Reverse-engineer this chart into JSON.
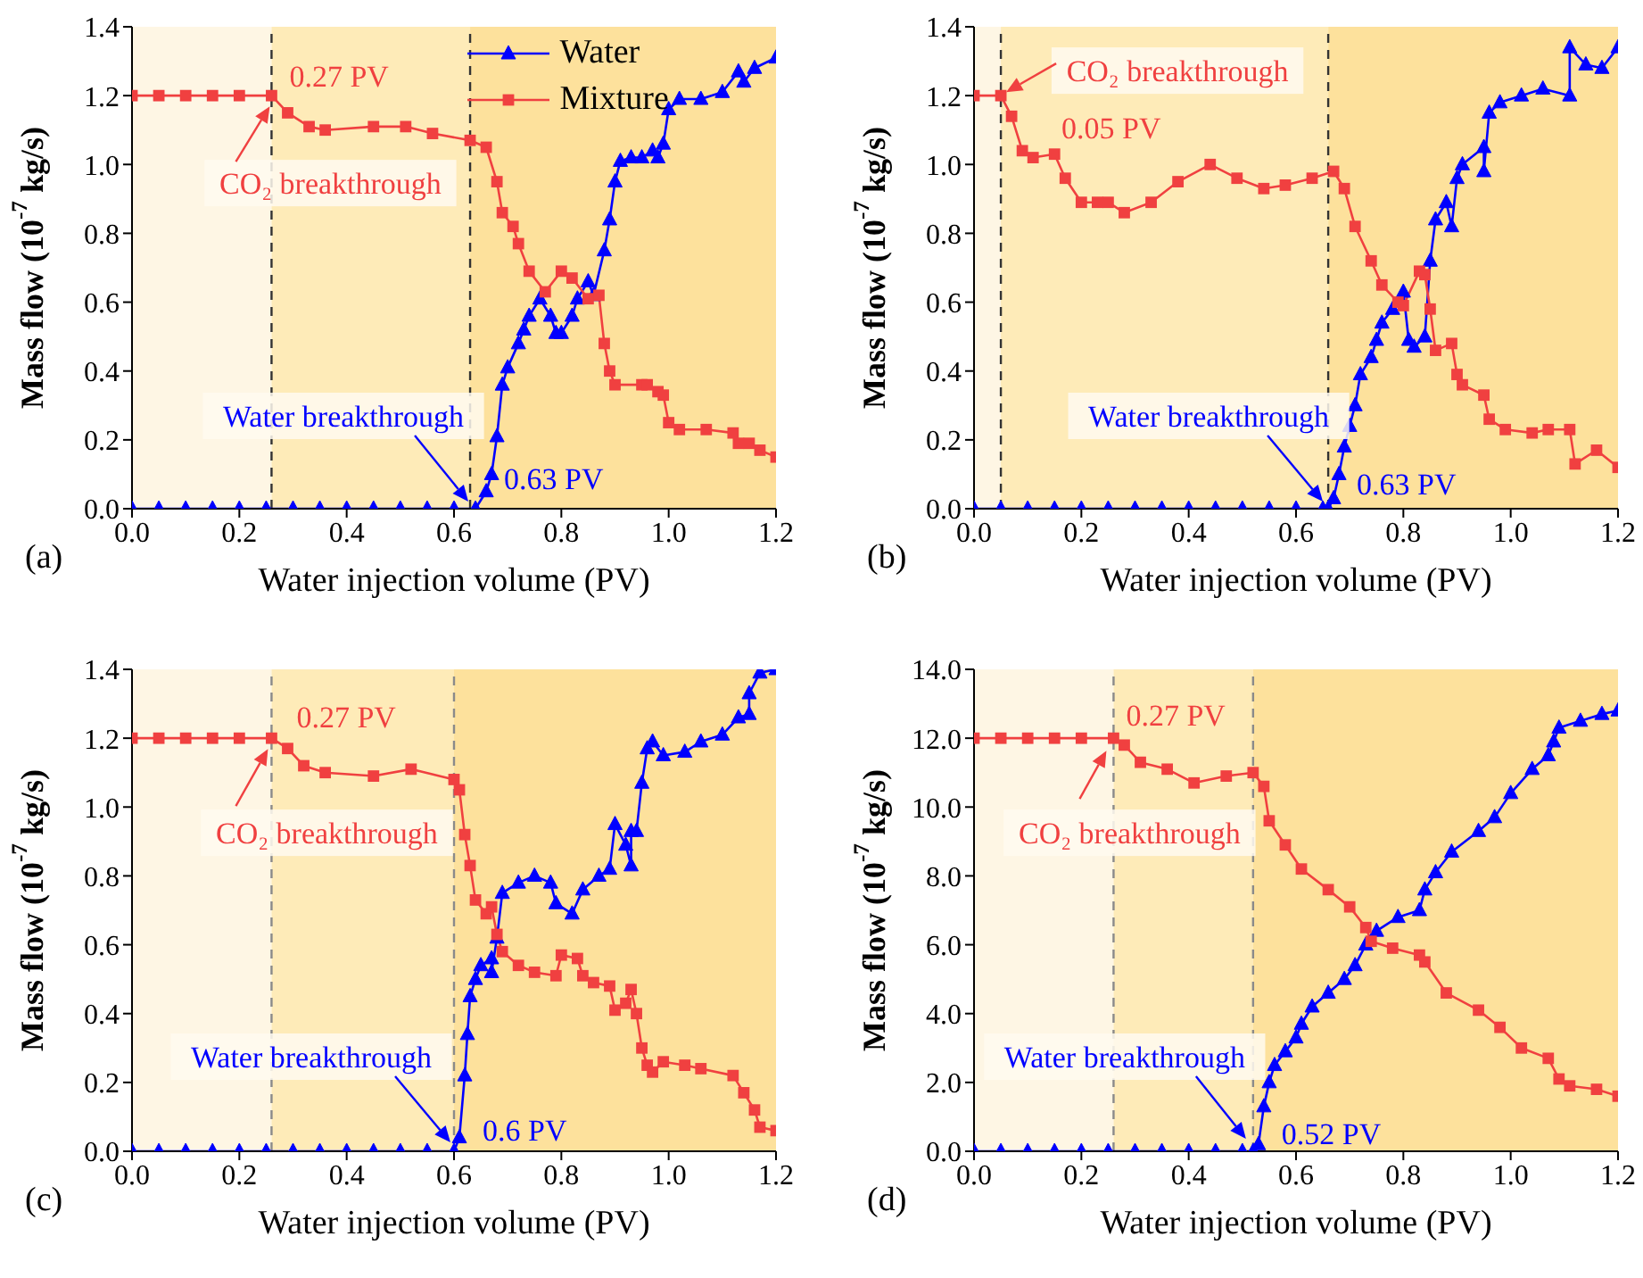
{
  "chart_data": [
    {
      "type": "line",
      "xlabel": "Water injection volume (PV)",
      "ylabel": "Mass flow (10$^{-7}$ kg/s)",
      "xlim": [
        0,
        1.2
      ],
      "ylim": [
        0,
        1.4
      ],
      "xticks": [
        {
          "value": 0,
          "label": "0.0"
        },
        {
          "value": 0.2,
          "label": "0.2"
        },
        {
          "value": 0.4,
          "label": "0.4"
        },
        {
          "value": 0.6,
          "label": "0.6"
        },
        {
          "value": 0.8,
          "label": "0.8"
        },
        {
          "value": 1,
          "label": "1.0"
        },
        {
          "value": 1.2,
          "label": "1.2"
        }
      ],
      "yticks": [
        {
          "value": 0,
          "label": "0.0"
        },
        {
          "value": 0.2,
          "label": "0.2"
        },
        {
          "value": 0.4,
          "label": "0.4"
        },
        {
          "value": 0.6,
          "label": "0.6"
        },
        {
          "value": 0.8,
          "label": "0.8"
        },
        {
          "value": 1,
          "label": "1.0"
        },
        {
          "value": 1.2,
          "label": "1.2"
        },
        {
          "value": 1.4,
          "label": "1.4"
        }
      ],
      "legend": "top right",
      "series": [
        {
          "name": "Water",
          "color": "#0000ff",
          "marker": "triangle",
          "x": [
            0,
            0.05,
            0.1,
            0.15,
            0.2,
            0.25,
            0.3,
            0.35,
            0.4,
            0.45,
            0.5,
            0.55,
            0.6,
            0.64,
            0.66,
            0.67,
            0.68,
            0.69,
            0.7,
            0.72,
            0.73,
            0.74,
            0.76,
            0.78,
            0.79,
            0.8,
            0.82,
            0.83,
            0.85,
            0.86,
            0.88,
            0.89,
            0.9,
            0.91,
            0.93,
            0.95,
            0.97,
            0.98,
            0.99,
            1.0,
            1.02,
            1.06,
            1.1,
            1.13,
            1.14,
            1.16,
            1.2
          ],
          "values": [
            0,
            0,
            0,
            0,
            0,
            0,
            0,
            0,
            0,
            0,
            0,
            0,
            0,
            0,
            0.05,
            0.1,
            0.21,
            0.36,
            0.41,
            0.48,
            0.52,
            0.56,
            0.61,
            0.56,
            0.51,
            0.51,
            0.56,
            0.61,
            0.66,
            0.62,
            0.75,
            0.84,
            0.95,
            1.01,
            1.02,
            1.02,
            1.04,
            1.02,
            1.06,
            1.16,
            1.19,
            1.19,
            1.21,
            1.27,
            1.24,
            1.28,
            1.31
          ]
        },
        {
          "name": "Mixture",
          "color": "#f04040",
          "marker": "square",
          "x": [
            0,
            0.05,
            0.1,
            0.15,
            0.2,
            0.26,
            0.29,
            0.33,
            0.36,
            0.45,
            0.51,
            0.56,
            0.63,
            0.66,
            0.68,
            0.69,
            0.71,
            0.72,
            0.74,
            0.77,
            0.8,
            0.82,
            0.85,
            0.87,
            0.88,
            0.89,
            0.9,
            0.95,
            0.96,
            0.98,
            0.99,
            1.0,
            1.02,
            1.07,
            1.12,
            1.13,
            1.15,
            1.17,
            1.2
          ],
          "values": [
            1.2,
            1.2,
            1.2,
            1.2,
            1.2,
            1.2,
            1.15,
            1.11,
            1.1,
            1.11,
            1.11,
            1.09,
            1.07,
            1.05,
            0.95,
            0.86,
            0.82,
            0.77,
            0.69,
            0.63,
            0.69,
            0.67,
            0.61,
            0.62,
            0.48,
            0.4,
            0.36,
            0.36,
            0.36,
            0.34,
            0.33,
            0.25,
            0.23,
            0.23,
            0.22,
            0.19,
            0.19,
            0.17,
            0.15
          ]
        }
      ],
      "bands": [
        {
          "axis": "x",
          "from": 0,
          "to": 0.26,
          "color": "#fef6e4"
        },
        {
          "axis": "x",
          "from": 0.26,
          "to": 0.63,
          "color": "#feebb8"
        },
        {
          "axis": "x",
          "from": 0.63,
          "to": 1.2,
          "color": "#fde19c"
        }
      ],
      "ref_lines": [
        {
          "axis": "x",
          "value": 0.26,
          "color": "#333333",
          "line_style": "dashed"
        },
        {
          "axis": "x",
          "value": 0.63,
          "color": "#333333",
          "line_style": "dashed"
        }
      ],
      "annotations": [
        "(a)",
        {
          "text": "0.27 PV",
          "x": 0.27,
          "y": 1.2
        },
        {
          "text": "CO₂ breakthrough",
          "x": 0.26,
          "y": 1.2
        },
        {
          "text": "Water breakthrough",
          "x": 0.63,
          "y": 0
        },
        {
          "text": "0.63 PV",
          "x": 0.63,
          "y": 0
        }
      ]
    },
    {
      "type": "line",
      "xlabel": "Water injection volume (PV)",
      "ylabel": "Mass flow (10$^{-7}$ kg/s)",
      "xlim": [
        0,
        1.2
      ],
      "ylim": [
        0,
        1.4
      ],
      "xticks": [
        {
          "value": 0,
          "label": "0.0"
        },
        {
          "value": 0.2,
          "label": "0.2"
        },
        {
          "value": 0.4,
          "label": "0.4"
        },
        {
          "value": 0.6,
          "label": "0.6"
        },
        {
          "value": 0.8,
          "label": "0.8"
        },
        {
          "value": 1,
          "label": "1.0"
        },
        {
          "value": 1.2,
          "label": "1.2"
        }
      ],
      "yticks": [
        {
          "value": 0,
          "label": "0.0"
        },
        {
          "value": 0.2,
          "label": "0.2"
        },
        {
          "value": 0.4,
          "label": "0.4"
        },
        {
          "value": 0.6,
          "label": "0.6"
        },
        {
          "value": 0.8,
          "label": "0.8"
        },
        {
          "value": 1,
          "label": "1.0"
        },
        {
          "value": 1.2,
          "label": "1.2"
        },
        {
          "value": 1.4,
          "label": "1.4"
        }
      ],
      "legend": false,
      "series": [
        {
          "color": "#0000ff",
          "marker": "triangle",
          "x": [
            0,
            0.05,
            0.1,
            0.15,
            0.2,
            0.25,
            0.3,
            0.35,
            0.4,
            0.45,
            0.5,
            0.55,
            0.6,
            0.65,
            0.66,
            0.67,
            0.68,
            0.69,
            0.7,
            0.71,
            0.72,
            0.74,
            0.75,
            0.76,
            0.78,
            0.8,
            0.81,
            0.82,
            0.84,
            0.85,
            0.86,
            0.88,
            0.89,
            0.9,
            0.91,
            0.95,
            0.95,
            0.96,
            0.98,
            1.02,
            1.06,
            1.11,
            1.11,
            1.14,
            1.17,
            1.2
          ],
          "values": [
            0,
            0,
            0,
            0,
            0,
            0,
            0,
            0,
            0,
            0,
            0,
            0,
            0,
            0,
            0,
            0.03,
            0.1,
            0.18,
            0.24,
            0.3,
            0.39,
            0.44,
            0.49,
            0.54,
            0.58,
            0.63,
            0.49,
            0.47,
            0.5,
            0.72,
            0.84,
            0.89,
            0.82,
            0.96,
            1.0,
            1.05,
            0.98,
            1.15,
            1.18,
            1.2,
            1.22,
            1.2,
            1.34,
            1.29,
            1.28,
            1.34
          ]
        },
        {
          "color": "#f04040",
          "marker": "square",
          "x": [
            0,
            0.05,
            0.07,
            0.09,
            0.11,
            0.15,
            0.17,
            0.2,
            0.23,
            0.25,
            0.28,
            0.33,
            0.38,
            0.44,
            0.49,
            0.54,
            0.58,
            0.63,
            0.67,
            0.69,
            0.71,
            0.74,
            0.76,
            0.79,
            0.8,
            0.83,
            0.84,
            0.85,
            0.86,
            0.89,
            0.9,
            0.91,
            0.95,
            0.96,
            0.99,
            1.04,
            1.07,
            1.11,
            1.12,
            1.16,
            1.2
          ],
          "values": [
            1.2,
            1.2,
            1.14,
            1.04,
            1.02,
            1.03,
            0.96,
            0.89,
            0.89,
            0.89,
            0.86,
            0.89,
            0.95,
            1.0,
            0.96,
            0.93,
            0.94,
            0.96,
            0.98,
            0.93,
            0.82,
            0.72,
            0.65,
            0.6,
            0.59,
            0.69,
            0.68,
            0.58,
            0.46,
            0.48,
            0.39,
            0.36,
            0.33,
            0.26,
            0.23,
            0.22,
            0.23,
            0.23,
            0.13,
            0.17,
            0.12
          ]
        }
      ],
      "bands": [
        {
          "axis": "x",
          "from": 0,
          "to": 0.05,
          "color": "#fef6e4"
        },
        {
          "axis": "x",
          "from": 0.05,
          "to": 0.66,
          "color": "#feebb8"
        },
        {
          "axis": "x",
          "from": 0.66,
          "to": 1.2,
          "color": "#fde19c"
        }
      ],
      "ref_lines": [
        {
          "axis": "x",
          "value": 0.05,
          "color": "#333333",
          "line_style": "dashed"
        },
        {
          "axis": "x",
          "value": 0.66,
          "color": "#333333",
          "line_style": "dashed"
        }
      ],
      "annotations": [
        "(b)",
        {
          "text": "0.05 PV",
          "x": 0.05,
          "y": 1.2
        },
        {
          "text": "CO₂ breakthrough",
          "x": 0.05,
          "y": 1.2
        },
        {
          "text": "Water breakthrough",
          "x": 0.66,
          "y": 0
        },
        {
          "text": "0.63 PV",
          "x": 0.63,
          "y": 0
        }
      ]
    },
    {
      "type": "line",
      "xlabel": "Water injection volume (PV)",
      "ylabel": "Mass flow (10$^{-7}$ kg/s)",
      "xlim": [
        0,
        1.2
      ],
      "ylim": [
        0,
        1.4
      ],
      "xticks": [
        {
          "value": 0,
          "label": "0.0"
        },
        {
          "value": 0.2,
          "label": "0.2"
        },
        {
          "value": 0.4,
          "label": "0.4"
        },
        {
          "value": 0.6,
          "label": "0.6"
        },
        {
          "value": 0.8,
          "label": "0.8"
        },
        {
          "value": 1,
          "label": "1.0"
        },
        {
          "value": 1.2,
          "label": "1.2"
        }
      ],
      "yticks": [
        {
          "value": 0,
          "label": "0.0"
        },
        {
          "value": 0.2,
          "label": "0.2"
        },
        {
          "value": 0.4,
          "label": "0.4"
        },
        {
          "value": 0.6,
          "label": "0.6"
        },
        {
          "value": 0.8,
          "label": "0.8"
        },
        {
          "value": 1,
          "label": "1.0"
        },
        {
          "value": 1.2,
          "label": "1.2"
        },
        {
          "value": 1.4,
          "label": "1.4"
        }
      ],
      "legend": false,
      "series": [
        {
          "color": "#0000ff",
          "marker": "triangle",
          "x": [
            0,
            0.05,
            0.1,
            0.15,
            0.2,
            0.25,
            0.3,
            0.35,
            0.4,
            0.45,
            0.5,
            0.55,
            0.6,
            0.61,
            0.62,
            0.625,
            0.63,
            0.64,
            0.65,
            0.67,
            0.67,
            0.68,
            0.69,
            0.72,
            0.75,
            0.78,
            0.79,
            0.82,
            0.84,
            0.87,
            0.89,
            0.9,
            0.92,
            0.93,
            0.93,
            0.94,
            0.95,
            0.96,
            0.97,
            0.99,
            1.03,
            1.06,
            1.1,
            1.13,
            1.15,
            1.15,
            1.17,
            1.2
          ],
          "values": [
            0,
            0,
            0,
            0,
            0,
            0,
            0,
            0,
            0,
            0,
            0,
            0,
            0,
            0.04,
            0.22,
            0.34,
            0.45,
            0.5,
            0.54,
            0.56,
            0.52,
            0.62,
            0.75,
            0.78,
            0.8,
            0.78,
            0.72,
            0.69,
            0.76,
            0.8,
            0.82,
            0.95,
            0.89,
            0.83,
            0.93,
            0.93,
            1.07,
            1.17,
            1.19,
            1.15,
            1.16,
            1.19,
            1.21,
            1.26,
            1.27,
            1.33,
            1.39,
            1.4
          ]
        },
        {
          "color": "#f04040",
          "marker": "square",
          "x": [
            0,
            0.05,
            0.1,
            0.15,
            0.2,
            0.26,
            0.29,
            0.32,
            0.36,
            0.45,
            0.52,
            0.6,
            0.61,
            0.62,
            0.63,
            0.64,
            0.66,
            0.67,
            0.68,
            0.69,
            0.72,
            0.75,
            0.79,
            0.8,
            0.83,
            0.84,
            0.86,
            0.89,
            0.9,
            0.92,
            0.93,
            0.94,
            0.95,
            0.96,
            0.97,
            0.99,
            1.03,
            1.06,
            1.12,
            1.14,
            1.16,
            1.17,
            1.2
          ],
          "values": [
            1.2,
            1.2,
            1.2,
            1.2,
            1.2,
            1.2,
            1.17,
            1.12,
            1.1,
            1.09,
            1.11,
            1.08,
            1.05,
            0.92,
            0.83,
            0.73,
            0.69,
            0.71,
            0.63,
            0.58,
            0.54,
            0.52,
            0.51,
            0.57,
            0.56,
            0.51,
            0.49,
            0.48,
            0.41,
            0.43,
            0.47,
            0.4,
            0.3,
            0.25,
            0.23,
            0.26,
            0.25,
            0.24,
            0.22,
            0.17,
            0.12,
            0.07,
            0.06
          ]
        }
      ],
      "bands": [
        {
          "axis": "x",
          "from": 0,
          "to": 0.26,
          "color": "#fef6e4"
        },
        {
          "axis": "x",
          "from": 0.26,
          "to": 0.6,
          "color": "#feebb8"
        },
        {
          "axis": "x",
          "from": 0.6,
          "to": 1.2,
          "color": "#fde19c"
        }
      ],
      "ref_lines": [
        {
          "axis": "x",
          "value": 0.26,
          "color": "#8a8a8a",
          "line_style": "dashed"
        },
        {
          "axis": "x",
          "value": 0.6,
          "color": "#8a8a8a",
          "line_style": "dashed"
        }
      ],
      "annotations": [
        "(c)",
        {
          "text": "0.27 PV",
          "x": 0.27,
          "y": 1.2
        },
        {
          "text": "CO₂ breakthrough",
          "x": 0.26,
          "y": 1.2
        },
        {
          "text": "Water breakthrough",
          "x": 0.6,
          "y": 0
        },
        {
          "text": "0.6 PV",
          "x": 0.6,
          "y": 0
        }
      ]
    },
    {
      "type": "line",
      "xlabel": "Water injection volume (PV)",
      "ylabel": "Mass flow (10$^{-7}$ kg/s)",
      "xlim": [
        0,
        1.2
      ],
      "ylim": [
        0,
        14
      ],
      "xticks": [
        {
          "value": 0,
          "label": "0.0"
        },
        {
          "value": 0.2,
          "label": "0.2"
        },
        {
          "value": 0.4,
          "label": "0.4"
        },
        {
          "value": 0.6,
          "label": "0.6"
        },
        {
          "value": 0.8,
          "label": "0.8"
        },
        {
          "value": 1,
          "label": "1.0"
        },
        {
          "value": 1.2,
          "label": "1.2"
        }
      ],
      "yticks": [
        {
          "value": 0,
          "label": "0.0"
        },
        {
          "value": 2,
          "label": "2.0"
        },
        {
          "value": 4,
          "label": "4.0"
        },
        {
          "value": 6,
          "label": "6.0"
        },
        {
          "value": 8,
          "label": "8.0"
        },
        {
          "value": 10,
          "label": "10.0"
        },
        {
          "value": 12,
          "label": "12.0"
        },
        {
          "value": 14,
          "label": "14.0"
        }
      ],
      "legend": false,
      "series": [
        {
          "color": "#0000ff",
          "marker": "triangle",
          "x": [
            0,
            0.05,
            0.1,
            0.15,
            0.2,
            0.25,
            0.3,
            0.35,
            0.4,
            0.45,
            0.5,
            0.52,
            0.53,
            0.54,
            0.55,
            0.56,
            0.58,
            0.6,
            0.61,
            0.63,
            0.66,
            0.69,
            0.71,
            0.73,
            0.75,
            0.79,
            0.83,
            0.84,
            0.86,
            0.89,
            0.94,
            0.97,
            1.0,
            1.04,
            1.07,
            1.08,
            1.09,
            1.13,
            1.17,
            1.2
          ],
          "values": [
            0,
            0,
            0,
            0,
            0,
            0,
            0,
            0,
            0,
            0,
            0,
            0,
            0.2,
            1.3,
            2.0,
            2.5,
            2.9,
            3.3,
            3.7,
            4.2,
            4.6,
            5.0,
            5.4,
            6.0,
            6.4,
            6.8,
            7.0,
            7.6,
            8.1,
            8.7,
            9.3,
            9.7,
            10.4,
            11.1,
            11.5,
            11.9,
            12.3,
            12.5,
            12.7,
            12.8
          ]
        },
        {
          "color": "#f04040",
          "marker": "square",
          "x": [
            0,
            0.05,
            0.1,
            0.15,
            0.2,
            0.26,
            0.28,
            0.31,
            0.36,
            0.41,
            0.47,
            0.52,
            0.54,
            0.55,
            0.58,
            0.61,
            0.66,
            0.7,
            0.73,
            0.74,
            0.78,
            0.83,
            0.84,
            0.88,
            0.94,
            0.98,
            1.02,
            1.07,
            1.09,
            1.11,
            1.16,
            1.2
          ],
          "values": [
            12,
            12,
            12,
            12,
            12,
            12,
            11.8,
            11.3,
            11.1,
            10.7,
            10.9,
            11.0,
            10.6,
            9.6,
            8.9,
            8.2,
            7.6,
            7.1,
            6.5,
            6.1,
            5.9,
            5.7,
            5.5,
            4.6,
            4.1,
            3.6,
            3.0,
            2.7,
            2.1,
            1.9,
            1.8,
            1.6
          ]
        }
      ],
      "bands": [
        {
          "axis": "x",
          "from": 0,
          "to": 0.26,
          "color": "#fef6e4"
        },
        {
          "axis": "x",
          "from": 0.26,
          "to": 0.52,
          "color": "#feebb8"
        },
        {
          "axis": "x",
          "from": 0.52,
          "to": 1.2,
          "color": "#fde19c"
        }
      ],
      "ref_lines": [
        {
          "axis": "x",
          "value": 0.26,
          "color": "#8a8a8a",
          "line_style": "dashed"
        },
        {
          "axis": "x",
          "value": 0.52,
          "color": "#8a8a8a",
          "line_style": "dashed"
        }
      ],
      "annotations": [
        "(d)",
        {
          "text": "0.27 PV",
          "x": 0.27,
          "y": 12
        },
        {
          "text": "CO₂ breakthrough",
          "x": 0.26,
          "y": 12
        },
        {
          "text": "Water breakthrough",
          "x": 0.52,
          "y": 0
        },
        {
          "text": "0.52 PV",
          "x": 0.52,
          "y": 0
        }
      ]
    }
  ]
}
